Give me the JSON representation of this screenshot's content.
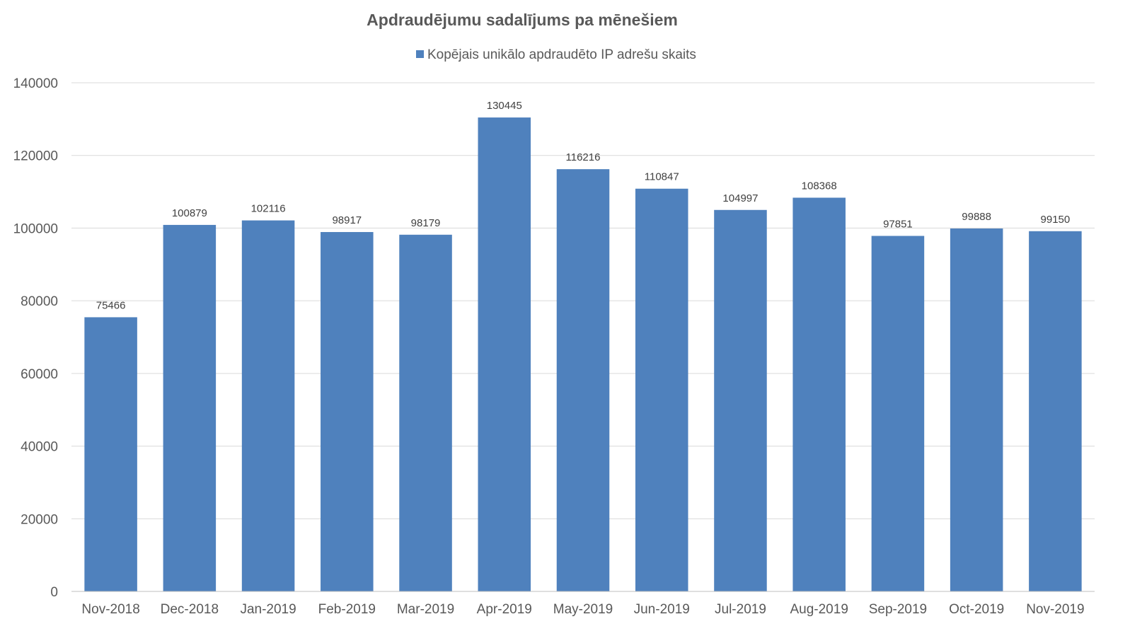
{
  "chart_data": {
    "type": "bar",
    "title": "Apdraudējumu sadalījums pa mēnešiem",
    "xlabel": "",
    "ylabel": "",
    "categories": [
      "Nov-2018",
      "Dec-2018",
      "Jan-2019",
      "Feb-2019",
      "Mar-2019",
      "Apr-2019",
      "May-2019",
      "Jun-2019",
      "Jul-2019",
      "Aug-2019",
      "Sep-2019",
      "Oct-2019",
      "Nov-2019"
    ],
    "series": [
      {
        "name": "Kopējais unikālo apdraudēto IP adrešu skaits",
        "color": "#4f81bd",
        "values": [
          75466,
          100879,
          102116,
          98917,
          98179,
          130445,
          116216,
          110847,
          104997,
          108368,
          97851,
          99888,
          99150
        ],
        "data_labels": [
          "75466",
          "100879",
          "102116",
          "98917",
          "98179",
          "130445",
          "116216",
          "110847",
          "104997",
          "108368",
          "97851",
          "99888",
          "99150"
        ]
      }
    ],
    "ylim": [
      0,
      140000
    ],
    "yticks": [
      0,
      20000,
      40000,
      60000,
      80000,
      100000,
      120000,
      140000
    ],
    "ytick_labels": [
      "0",
      "20000",
      "40000",
      "60000",
      "80000",
      "100000",
      "120000",
      "140000"
    ],
    "grid": true,
    "legend_position": "top"
  }
}
